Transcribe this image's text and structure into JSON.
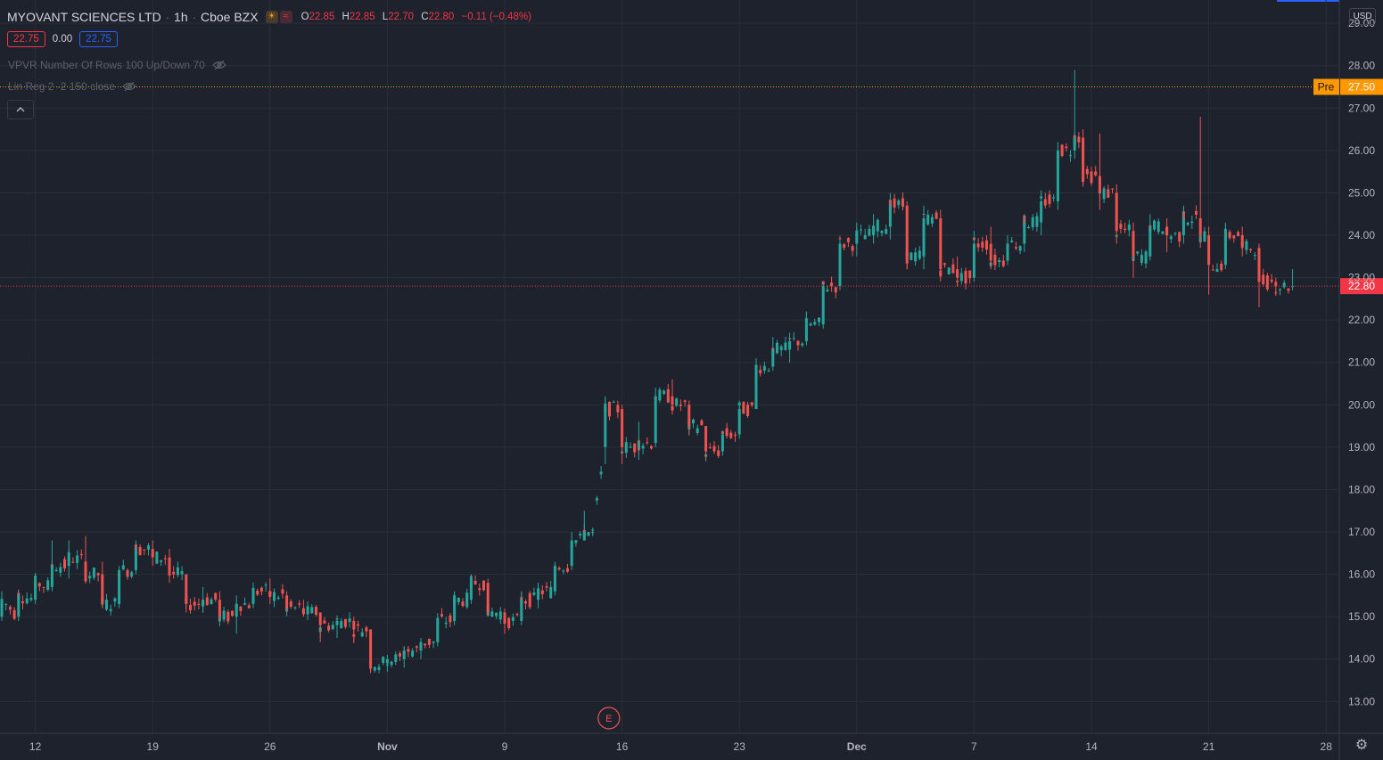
{
  "header": {
    "symbol": "MYOVANT SCIENCES LTD",
    "separator": "·",
    "interval": "1h",
    "exchange": "Cboe BZX",
    "ohlc": {
      "o_label": "O",
      "o": "22.85",
      "h_label": "H",
      "h": "22.85",
      "l_label": "L",
      "l": "22.70",
      "c_label": "C",
      "c": "22.80",
      "change": "−0.11 (−0.48%)"
    }
  },
  "trade": {
    "sell": "22.75",
    "spread": "0.00",
    "buy": "22.75"
  },
  "indicators": [
    {
      "label": "VPVR Number Of Rows 100 Up/Down 70"
    },
    {
      "label": "Lin Reg 2 -2 150 close"
    }
  ],
  "currency": "USD",
  "icons": {
    "collapse": "chevron-up-icon",
    "visibility": "eye-off-icon",
    "settings": "gear-icon",
    "market_status": "sun-icon",
    "market_status_2": "wave-icon"
  },
  "colors": {
    "background": "#1e222d",
    "up": "#26a69a",
    "down": "#ef5350",
    "pre_market": "#ff9800",
    "last_price": "#f23645",
    "grid": "#2a2e39"
  },
  "earnings_marker": "E",
  "chart_data": {
    "type": "candlestick",
    "y_axis": {
      "ylim": [
        12.25,
        29.55
      ],
      "ticks": [
        "13.00",
        "14.00",
        "15.00",
        "16.00",
        "17.00",
        "18.00",
        "19.00",
        "20.00",
        "21.00",
        "22.00",
        "23.00",
        "24.00",
        "25.00",
        "26.00",
        "27.00",
        "28.00",
        "29.00"
      ]
    },
    "x_axis": {
      "ticks": [
        {
          "label": "12",
          "bar": 8
        },
        {
          "label": "19",
          "bar": 36
        },
        {
          "label": "26",
          "bar": 64
        },
        {
          "label": "Nov",
          "bar": 92
        },
        {
          "label": "9",
          "bar": 120
        },
        {
          "label": "16",
          "bar": 148
        },
        {
          "label": "23",
          "bar": 176
        },
        {
          "label": "Dec",
          "bar": 204
        },
        {
          "label": "7",
          "bar": 232
        },
        {
          "label": "14",
          "bar": 260
        },
        {
          "label": "21",
          "bar": 288
        },
        {
          "label": "28",
          "bar": 316
        }
      ]
    },
    "price_lines": [
      {
        "label": "Pre",
        "value": 27.5,
        "color": "#ff9800"
      },
      {
        "label": "",
        "value": 22.8,
        "color": "#f23645"
      }
    ],
    "earnings_event": {
      "label": "E",
      "bar": 144
    },
    "daily": [
      {
        "bar": 0,
        "o": 15.0,
        "h": 15.6,
        "l": 14.9,
        "c": 15.4
      },
      {
        "bar": 4,
        "o": 15.0,
        "h": 15.6,
        "l": 14.9,
        "c": 15.5
      },
      {
        "bar": 8,
        "o": 15.4,
        "h": 16.0,
        "l": 15.3,
        "c": 15.8
      },
      {
        "bar": 12,
        "o": 15.7,
        "h": 16.8,
        "l": 15.6,
        "c": 16.2
      },
      {
        "bar": 16,
        "o": 16.2,
        "h": 16.8,
        "l": 15.9,
        "c": 16.4
      },
      {
        "bar": 20,
        "o": 16.3,
        "h": 16.9,
        "l": 15.8,
        "c": 16.0
      },
      {
        "bar": 24,
        "o": 16.0,
        "h": 16.3,
        "l": 15.2,
        "c": 15.3
      },
      {
        "bar": 28,
        "o": 15.3,
        "h": 16.2,
        "l": 15.2,
        "c": 16.1
      },
      {
        "bar": 32,
        "o": 16.1,
        "h": 16.8,
        "l": 16.0,
        "c": 16.6
      },
      {
        "bar": 36,
        "o": 16.6,
        "h": 16.8,
        "l": 16.2,
        "c": 16.4
      },
      {
        "bar": 40,
        "o": 16.4,
        "h": 16.6,
        "l": 15.8,
        "c": 16.0
      },
      {
        "bar": 44,
        "o": 16.0,
        "h": 16.0,
        "l": 15.1,
        "c": 15.3
      },
      {
        "bar": 48,
        "o": 15.3,
        "h": 15.7,
        "l": 15.1,
        "c": 15.4
      },
      {
        "bar": 52,
        "o": 15.4,
        "h": 15.6,
        "l": 14.9,
        "c": 15.0
      },
      {
        "bar": 56,
        "o": 15.0,
        "h": 15.5,
        "l": 14.6,
        "c": 15.3
      },
      {
        "bar": 60,
        "o": 15.3,
        "h": 15.8,
        "l": 15.2,
        "c": 15.6
      },
      {
        "bar": 64,
        "o": 15.6,
        "h": 15.9,
        "l": 15.3,
        "c": 15.5
      },
      {
        "bar": 68,
        "o": 15.5,
        "h": 15.6,
        "l": 15.1,
        "c": 15.2
      },
      {
        "bar": 72,
        "o": 15.2,
        "h": 15.4,
        "l": 15.0,
        "c": 15.1
      },
      {
        "bar": 76,
        "o": 15.1,
        "h": 15.1,
        "l": 14.4,
        "c": 14.8
      },
      {
        "bar": 80,
        "o": 14.8,
        "h": 15.0,
        "l": 14.5,
        "c": 14.9
      },
      {
        "bar": 84,
        "o": 14.9,
        "h": 15.0,
        "l": 14.4,
        "c": 14.7
      },
      {
        "bar": 88,
        "o": 14.7,
        "h": 14.7,
        "l": 13.7,
        "c": 13.9
      },
      {
        "bar": 92,
        "o": 13.9,
        "h": 14.1,
        "l": 13.7,
        "c": 14.0
      },
      {
        "bar": 96,
        "o": 14.0,
        "h": 14.3,
        "l": 13.8,
        "c": 14.2
      },
      {
        "bar": 100,
        "o": 14.2,
        "h": 14.5,
        "l": 14.0,
        "c": 14.4
      },
      {
        "bar": 104,
        "o": 14.4,
        "h": 15.0,
        "l": 14.3,
        "c": 14.9
      },
      {
        "bar": 108,
        "o": 14.9,
        "h": 15.6,
        "l": 14.8,
        "c": 15.4
      },
      {
        "bar": 112,
        "o": 15.4,
        "h": 16.0,
        "l": 15.3,
        "c": 15.8
      },
      {
        "bar": 116,
        "o": 15.8,
        "h": 15.9,
        "l": 15.0,
        "c": 15.1
      },
      {
        "bar": 120,
        "o": 15.1,
        "h": 15.1,
        "l": 14.6,
        "c": 14.9
      },
      {
        "bar": 124,
        "o": 14.9,
        "h": 15.6,
        "l": 14.8,
        "c": 15.4
      },
      {
        "bar": 128,
        "o": 15.4,
        "h": 15.8,
        "l": 15.2,
        "c": 15.6
      },
      {
        "bar": 132,
        "o": 15.6,
        "h": 16.3,
        "l": 15.5,
        "c": 16.2
      },
      {
        "bar": 136,
        "o": 16.2,
        "h": 17.0,
        "l": 16.1,
        "c": 16.8
      },
      {
        "bar": 139,
        "o": 16.8,
        "h": 17.5,
        "l": 16.8,
        "c": 17.0
      },
      {
        "bar": 141,
        "o": 17.0,
        "h": 17.1,
        "l": 16.9,
        "c": 17.0
      },
      {
        "bar": 144,
        "o": 19.0,
        "h": 20.2,
        "l": 18.6,
        "c": 19.9
      },
      {
        "bar": 148,
        "o": 19.9,
        "h": 20.0,
        "l": 18.6,
        "c": 19.0
      },
      {
        "bar": 152,
        "o": 19.0,
        "h": 19.6,
        "l": 18.7,
        "c": 19.1
      },
      {
        "bar": 156,
        "o": 19.1,
        "h": 20.4,
        "l": 19.0,
        "c": 20.2
      },
      {
        "bar": 160,
        "o": 20.2,
        "h": 20.6,
        "l": 19.8,
        "c": 20.0
      },
      {
        "bar": 164,
        "o": 20.0,
        "h": 20.1,
        "l": 19.3,
        "c": 19.5
      },
      {
        "bar": 168,
        "o": 19.5,
        "h": 19.5,
        "l": 18.7,
        "c": 18.9
      },
      {
        "bar": 172,
        "o": 18.9,
        "h": 19.4,
        "l": 18.8,
        "c": 19.3
      },
      {
        "bar": 176,
        "o": 19.3,
        "h": 20.1,
        "l": 19.2,
        "c": 19.9
      },
      {
        "bar": 180,
        "o": 19.9,
        "h": 21.1,
        "l": 19.9,
        "c": 20.9
      },
      {
        "bar": 184,
        "o": 20.9,
        "h": 21.6,
        "l": 20.8,
        "c": 21.3
      },
      {
        "bar": 188,
        "o": 21.3,
        "h": 21.7,
        "l": 21.0,
        "c": 21.5
      },
      {
        "bar": 192,
        "o": 21.5,
        "h": 22.2,
        "l": 21.4,
        "c": 21.9
      },
      {
        "bar": 196,
        "o": 21.9,
        "h": 22.9,
        "l": 21.8,
        "c": 22.8
      },
      {
        "bar": 200,
        "o": 22.8,
        "h": 23.9,
        "l": 22.7,
        "c": 23.8
      },
      {
        "bar": 204,
        "o": 23.8,
        "h": 24.3,
        "l": 23.5,
        "c": 24.0
      },
      {
        "bar": 208,
        "o": 24.0,
        "h": 24.5,
        "l": 23.8,
        "c": 24.2
      },
      {
        "bar": 212,
        "o": 24.2,
        "h": 25.0,
        "l": 23.9,
        "c": 24.7
      },
      {
        "bar": 216,
        "o": 24.7,
        "h": 24.8,
        "l": 23.2,
        "c": 23.5
      },
      {
        "bar": 220,
        "o": 23.5,
        "h": 24.7,
        "l": 23.2,
        "c": 24.4
      },
      {
        "bar": 224,
        "o": 24.4,
        "h": 24.6,
        "l": 23.0,
        "c": 23.2
      },
      {
        "bar": 228,
        "o": 23.2,
        "h": 23.5,
        "l": 22.8,
        "c": 23.0
      },
      {
        "bar": 232,
        "o": 23.0,
        "h": 24.1,
        "l": 22.9,
        "c": 23.8
      },
      {
        "bar": 236,
        "o": 23.8,
        "h": 24.2,
        "l": 23.2,
        "c": 23.4
      },
      {
        "bar": 240,
        "o": 23.4,
        "h": 24.0,
        "l": 23.3,
        "c": 23.8
      },
      {
        "bar": 244,
        "o": 23.8,
        "h": 24.5,
        "l": 23.6,
        "c": 24.3
      },
      {
        "bar": 248,
        "o": 24.3,
        "h": 25.0,
        "l": 24.0,
        "c": 24.8
      },
      {
        "bar": 252,
        "o": 24.8,
        "h": 26.2,
        "l": 24.6,
        "c": 26.0
      },
      {
        "bar": 256,
        "o": 26.0,
        "h": 27.9,
        "l": 25.8,
        "c": 26.3
      },
      {
        "bar": 258,
        "o": 26.3,
        "h": 26.5,
        "l": 25.2,
        "c": 25.4
      },
      {
        "bar": 262,
        "o": 25.4,
        "h": 26.4,
        "l": 24.6,
        "c": 25.0
      },
      {
        "bar": 266,
        "o": 25.0,
        "h": 25.2,
        "l": 23.8,
        "c": 24.1
      },
      {
        "bar": 270,
        "o": 24.1,
        "h": 24.3,
        "l": 23.0,
        "c": 23.5
      },
      {
        "bar": 274,
        "o": 23.5,
        "h": 24.5,
        "l": 23.4,
        "c": 24.2
      },
      {
        "bar": 278,
        "o": 24.2,
        "h": 24.4,
        "l": 23.6,
        "c": 24.0
      },
      {
        "bar": 282,
        "o": 24.0,
        "h": 24.7,
        "l": 23.8,
        "c": 24.4
      },
      {
        "bar": 286,
        "o": 24.4,
        "h": 26.8,
        "l": 23.7,
        "c": 24.0
      },
      {
        "bar": 288,
        "o": 24.0,
        "h": 24.2,
        "l": 22.6,
        "c": 23.3
      },
      {
        "bar": 292,
        "o": 23.3,
        "h": 24.3,
        "l": 23.2,
        "c": 24.0
      },
      {
        "bar": 296,
        "o": 24.0,
        "h": 24.2,
        "l": 23.5,
        "c": 23.7
      },
      {
        "bar": 300,
        "o": 23.7,
        "h": 23.8,
        "l": 22.3,
        "c": 22.9
      },
      {
        "bar": 304,
        "o": 22.9,
        "h": 23.0,
        "l": 22.6,
        "c": 22.8
      },
      {
        "bar": 308,
        "o": 22.8,
        "h": 23.2,
        "l": 22.7,
        "c": 22.8
      }
    ]
  }
}
